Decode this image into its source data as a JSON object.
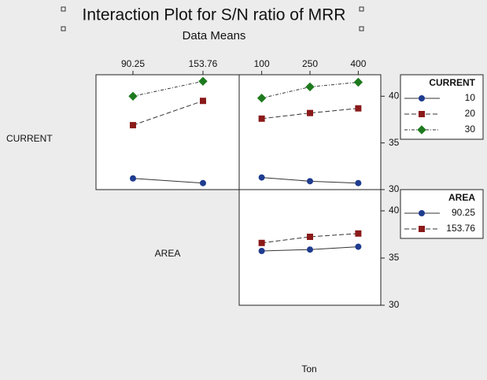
{
  "title": "Interaction Plot for S/N ratio of MRR",
  "subtitle": "Data Means",
  "labels": {
    "row_current": "CURRENT",
    "cell_area": "AREA",
    "column_ton": "Ton"
  },
  "chart_data": [
    {
      "type": "line",
      "x": [
        90.25,
        153.76
      ],
      "xlim": [
        56.7,
        186.6
      ],
      "xticks": [
        90.25,
        153.76
      ],
      "ylim": [
        30,
        42.3
      ],
      "series": [
        {
          "color": "#1f3c8f",
          "marker": "circle",
          "dash": "solid",
          "values": [
            31.2,
            30.7
          ]
        },
        {
          "color": "#8b1a1a",
          "marker": "square",
          "dash": "dashed",
          "values": [
            36.9,
            39.5
          ]
        },
        {
          "color": "#1e7a1e",
          "marker": "diamond",
          "dash": "dashdot",
          "values": [
            40.0,
            41.6
          ]
        }
      ]
    },
    {
      "type": "line",
      "x": [
        100,
        250,
        400
      ],
      "xlim": [
        30,
        470
      ],
      "xticks": [
        100,
        250,
        400
      ],
      "ylim": [
        30,
        42.3
      ],
      "yticks": [
        30,
        35,
        40
      ],
      "legend_title": "CURRENT",
      "series": [
        {
          "name": "10",
          "color": "#1f3c8f",
          "marker": "circle",
          "dash": "solid",
          "values": [
            31.3,
            30.9,
            30.7
          ]
        },
        {
          "name": "20",
          "color": "#8b1a1a",
          "marker": "square",
          "dash": "dashed",
          "values": [
            37.6,
            38.2,
            38.7
          ]
        },
        {
          "name": "30",
          "color": "#1e7a1e",
          "marker": "diamond",
          "dash": "dashdot",
          "values": [
            39.8,
            41.0,
            41.5
          ]
        }
      ]
    },
    {
      "type": "line",
      "x": [
        100,
        250,
        400
      ],
      "xlim": [
        30,
        470
      ],
      "ylim": [
        30,
        42.25
      ],
      "yticks": [
        30,
        35,
        40
      ],
      "legend_title": "AREA",
      "series": [
        {
          "name": "90.25",
          "color": "#1f3c8f",
          "marker": "circle",
          "dash": "solid",
          "values": [
            35.75,
            35.9,
            36.2
          ]
        },
        {
          "name": "153.76",
          "color": "#8b1a1a",
          "marker": "square",
          "dash": "dashed",
          "values": [
            36.6,
            37.25,
            37.6
          ]
        }
      ]
    }
  ]
}
